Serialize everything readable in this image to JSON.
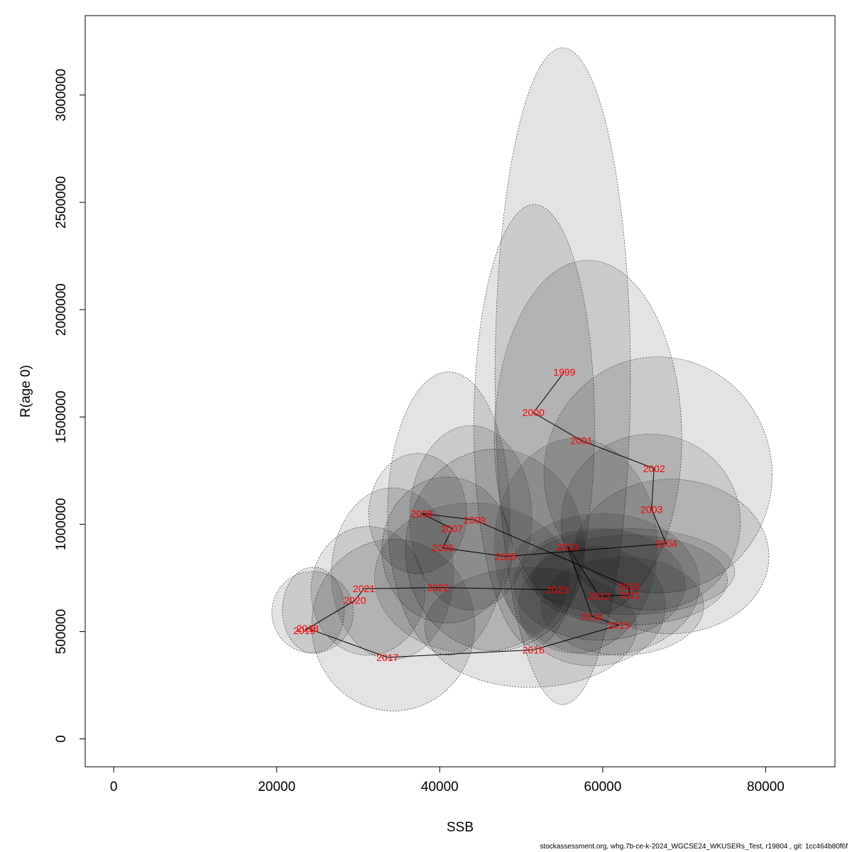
{
  "chart_data": {
    "type": "scatter",
    "xlabel": "SSB",
    "ylabel": "R(age 0)",
    "xlim": [
      -3500,
      88500
    ],
    "ylim": [
      -130000,
      3370000
    ],
    "x_ticks": [
      0,
      20000,
      40000,
      60000,
      80000
    ],
    "y_ticks": [
      0,
      500000,
      1000000,
      1500000,
      2000000,
      2500000,
      3000000
    ],
    "point_color": "#ff0000",
    "line_color": "#000000",
    "ellipse_fill": "#000000",
    "ellipse_opacity": 0.11,
    "points": [
      {
        "year": "1999",
        "ssb": 55300,
        "r": 1710000
      },
      {
        "year": "2000",
        "ssb": 51500,
        "r": 1520000
      },
      {
        "year": "2001",
        "ssb": 57400,
        "r": 1390000
      },
      {
        "year": "2002",
        "ssb": 66300,
        "r": 1260000
      },
      {
        "year": "2003",
        "ssb": 66000,
        "r": 1070000
      },
      {
        "year": "2004",
        "ssb": 67800,
        "r": 910000
      },
      {
        "year": "2005",
        "ssb": 48100,
        "r": 850000
      },
      {
        "year": "2006",
        "ssb": 40400,
        "r": 890000
      },
      {
        "year": "2007",
        "ssb": 41500,
        "r": 980000
      },
      {
        "year": "2008",
        "ssb": 37800,
        "r": 1050000
      },
      {
        "year": "2009",
        "ssb": 44300,
        "r": 1020000
      },
      {
        "year": "2010",
        "ssb": 63200,
        "r": 710000
      },
      {
        "year": "2011",
        "ssb": 63300,
        "r": 670000
      },
      {
        "year": "2012",
        "ssb": 59600,
        "r": 665000
      },
      {
        "year": "2013",
        "ssb": 55700,
        "r": 895000
      },
      {
        "year": "2014",
        "ssb": 58700,
        "r": 570000
      },
      {
        "year": "2015",
        "ssb": 62000,
        "r": 530000
      },
      {
        "year": "2016",
        "ssb": 51500,
        "r": 415000
      },
      {
        "year": "2017",
        "ssb": 33600,
        "r": 380000
      },
      {
        "year": "2018",
        "ssb": 23800,
        "r": 515000
      },
      {
        "year": "2019",
        "ssb": 23400,
        "r": 505000
      },
      {
        "year": "2020",
        "ssb": 29600,
        "r": 645000
      },
      {
        "year": "2021",
        "ssb": 30700,
        "r": 700000
      },
      {
        "year": "2022",
        "ssb": 39800,
        "r": 705000
      },
      {
        "year": "2023",
        "ssb": 54400,
        "r": 695000
      }
    ],
    "ellipses": [
      {
        "cx": 55100,
        "cy": 1690000,
        "rx": 8300,
        "ry": 1530000
      },
      {
        "cx": 51600,
        "cy": 1460000,
        "rx": 7400,
        "ry": 1030000
      },
      {
        "cx": 58200,
        "cy": 1400000,
        "rx": 11500,
        "ry": 830000
      },
      {
        "cx": 66800,
        "cy": 1230000,
        "rx": 14000,
        "ry": 550000
      },
      {
        "cx": 65900,
        "cy": 1010000,
        "rx": 11000,
        "ry": 410000
      },
      {
        "cx": 68400,
        "cy": 850000,
        "rx": 12000,
        "ry": 360000
      },
      {
        "cx": 46800,
        "cy": 880000,
        "rx": 11000,
        "ry": 470000
      },
      {
        "cx": 40900,
        "cy": 880000,
        "rx": 8000,
        "ry": 340000
      },
      {
        "cx": 41100,
        "cy": 1050000,
        "rx": 7500,
        "ry": 660000
      },
      {
        "cx": 37300,
        "cy": 1050000,
        "rx": 6000,
        "ry": 280000
      },
      {
        "cx": 43800,
        "cy": 1030000,
        "rx": 7500,
        "ry": 430000
      },
      {
        "cx": 63200,
        "cy": 780000,
        "rx": 13000,
        "ry": 200000
      },
      {
        "cx": 63300,
        "cy": 740000,
        "rx": 12000,
        "ry": 210000
      },
      {
        "cx": 59600,
        "cy": 720000,
        "rx": 10500,
        "ry": 260000
      },
      {
        "cx": 56700,
        "cy": 900000,
        "rx": 10000,
        "ry": 500000
      },
      {
        "cx": 58700,
        "cy": 620000,
        "rx": 9000,
        "ry": 280000
      },
      {
        "cx": 62400,
        "cy": 620000,
        "rx": 10000,
        "ry": 230000
      },
      {
        "cx": 51200,
        "cy": 520000,
        "rx": 13000,
        "ry": 280000
      },
      {
        "cx": 34300,
        "cy": 530000,
        "rx": 10000,
        "ry": 400000
      },
      {
        "cx": 24500,
        "cy": 600000,
        "rx": 3800,
        "ry": 200000
      },
      {
        "cx": 24400,
        "cy": 590000,
        "rx": 5000,
        "ry": 190000
      },
      {
        "cx": 31200,
        "cy": 690000,
        "rx": 7000,
        "ry": 300000
      },
      {
        "cx": 34200,
        "cy": 770000,
        "rx": 7500,
        "ry": 400000
      },
      {
        "cx": 44000,
        "cy": 750000,
        "rx": 12000,
        "ry": 350000
      },
      {
        "cx": 59900,
        "cy": 720000,
        "rx": 12000,
        "ry": 330000
      }
    ]
  },
  "footer": "stockassessment.org, whg.7b-ce-k-2024_WGCSE24_WKUSERs_Test, r19804 , git: 1cc464b80f6f"
}
